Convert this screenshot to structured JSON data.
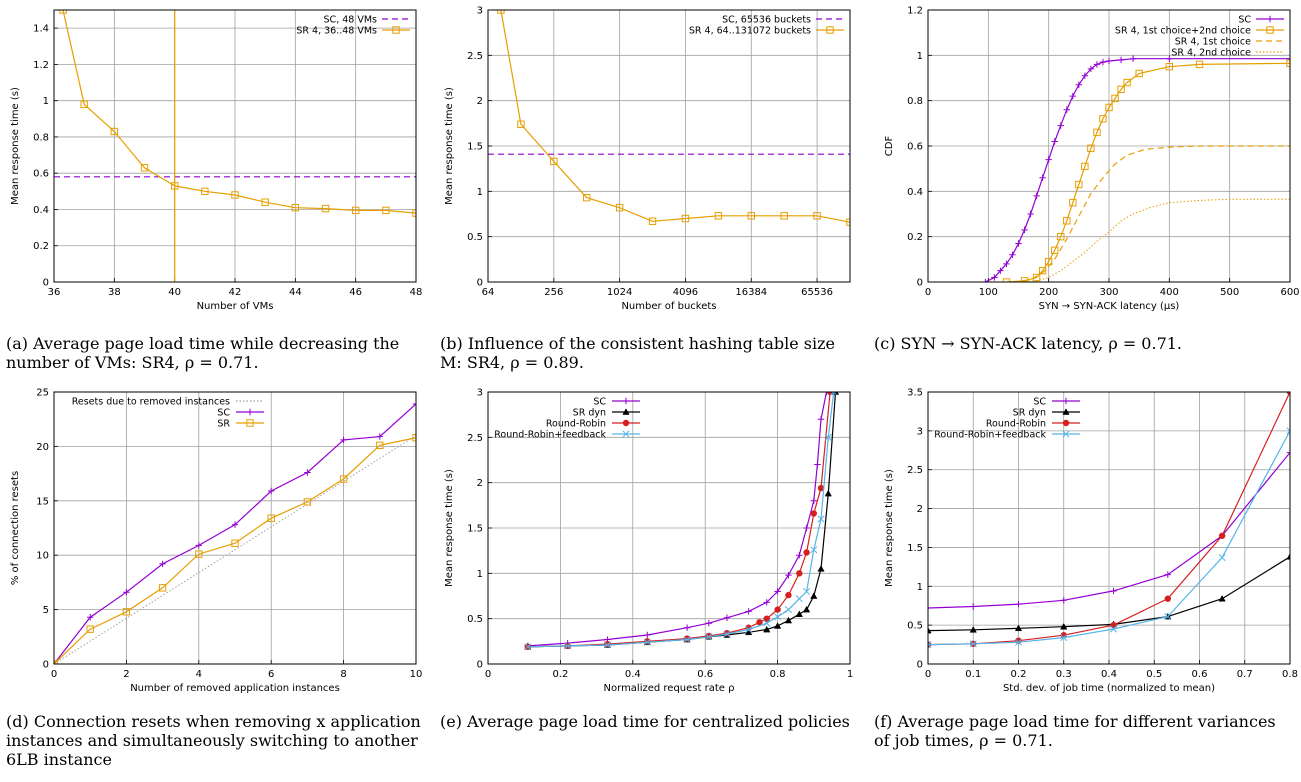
{
  "colors": {
    "sc": "#9400d3",
    "sr": "#e69f00",
    "black": "#000000",
    "red": "#d62020",
    "blue": "#56b4e9",
    "grid": "#a0a0a0"
  },
  "chart_data": [
    {
      "id": "a",
      "type": "line",
      "xlabel": "Number of VMs",
      "ylabel": "Mean response time (s)",
      "xlim": [
        36,
        48
      ],
      "ylim": [
        0,
        1.5
      ],
      "xticks": [
        36,
        38,
        40,
        42,
        44,
        46,
        48
      ],
      "yticks": [
        0,
        0.2,
        0.4,
        0.6,
        0.8,
        1,
        1.2,
        1.4
      ],
      "grid": true,
      "legend": "top-right",
      "series": [
        {
          "name": "SC, 48 VMs",
          "color": "#9400d3",
          "style": "dashed",
          "marker": "none",
          "x": [
            36,
            48
          ],
          "y": [
            0.58,
            0.58
          ]
        },
        {
          "name": "SR 4, 36..48 VMs",
          "color": "#e69f00",
          "style": "solid",
          "marker": "square",
          "x": [
            36.3,
            37,
            38,
            39,
            40,
            41,
            42,
            43,
            44,
            45,
            46,
            47,
            48
          ],
          "y": [
            1.5,
            0.98,
            0.83,
            0.63,
            0.53,
            0.5,
            0.48,
            0.44,
            0.41,
            0.405,
            0.395,
            0.395,
            0.38
          ]
        },
        {
          "name": "",
          "color": "#e69f00",
          "style": "solid",
          "marker": "none",
          "x": [
            40,
            40
          ],
          "y": [
            0,
            1.5
          ]
        }
      ]
    },
    {
      "id": "b",
      "type": "line",
      "xlabel": "Number of buckets",
      "ylabel": "Mean response time (s)",
      "xscale": "log2",
      "xlim": [
        64,
        131072
      ],
      "ylim": [
        0,
        3
      ],
      "xticks": [
        64,
        256,
        1024,
        4096,
        16384,
        65536
      ],
      "yticks": [
        0,
        0.5,
        1,
        1.5,
        2,
        2.5,
        3
      ],
      "grid": true,
      "legend": "top-right",
      "series": [
        {
          "name": "SC, 65536 buckets",
          "color": "#9400d3",
          "style": "dashed",
          "marker": "none",
          "x": [
            64,
            131072
          ],
          "y": [
            1.41,
            1.41
          ]
        },
        {
          "name": "SR 4, 64..131072 buckets",
          "color": "#e69f00",
          "style": "solid",
          "marker": "square",
          "x": [
            84,
            128,
            256,
            512,
            1024,
            2048,
            4096,
            8192,
            16384,
            32768,
            65536,
            131072
          ],
          "y": [
            3,
            1.74,
            1.33,
            0.93,
            0.82,
            0.67,
            0.7,
            0.73,
            0.73,
            0.73,
            0.73,
            0.66
          ]
        }
      ]
    },
    {
      "id": "c",
      "type": "line",
      "xlabel": "SYN → SYN-ACK latency (μs)",
      "ylabel": "CDF",
      "xlim": [
        0,
        600
      ],
      "ylim": [
        0,
        1.2
      ],
      "xticks": [
        0,
        100,
        200,
        300,
        400,
        500,
        600
      ],
      "yticks": [
        0,
        0.2,
        0.4,
        0.6,
        0.8,
        1,
        1.2
      ],
      "grid": true,
      "legend": "top-right",
      "series": [
        {
          "name": "SC",
          "color": "#9400d3",
          "style": "solid",
          "marker": "plus",
          "x": [
            95,
            110,
            120,
            130,
            140,
            150,
            160,
            170,
            180,
            190,
            200,
            210,
            220,
            230,
            240,
            250,
            260,
            270,
            280,
            290,
            300,
            320,
            340,
            400,
            600
          ],
          "y": [
            0,
            0.02,
            0.05,
            0.08,
            0.12,
            0.17,
            0.23,
            0.3,
            0.38,
            0.46,
            0.54,
            0.62,
            0.69,
            0.76,
            0.82,
            0.87,
            0.91,
            0.94,
            0.96,
            0.97,
            0.975,
            0.98,
            0.985,
            0.985,
            0.985
          ]
        },
        {
          "name": "SR 4, 1st choice+2nd choice",
          "color": "#e69f00",
          "style": "solid",
          "marker": "square",
          "x": [
            130,
            160,
            180,
            190,
            200,
            210,
            220,
            230,
            240,
            250,
            260,
            270,
            280,
            290,
            300,
            310,
            320,
            330,
            350,
            400,
            450,
            600
          ],
          "y": [
            0,
            0.005,
            0.02,
            0.05,
            0.09,
            0.14,
            0.2,
            0.27,
            0.35,
            0.43,
            0.51,
            0.59,
            0.66,
            0.72,
            0.77,
            0.81,
            0.85,
            0.88,
            0.92,
            0.95,
            0.96,
            0.965
          ]
        },
        {
          "name": "SR 4, 1st choice",
          "color": "#e69f00",
          "style": "dashed",
          "marker": "none",
          "x": [
            140,
            170,
            190,
            210,
            230,
            250,
            270,
            290,
            310,
            330,
            360,
            400,
            450,
            500,
            600
          ],
          "y": [
            0,
            0.01,
            0.04,
            0.1,
            0.19,
            0.29,
            0.39,
            0.46,
            0.52,
            0.56,
            0.585,
            0.595,
            0.6,
            0.6,
            0.6
          ]
        },
        {
          "name": "SR 4, 2nd choice",
          "color": "#e69f00",
          "style": "dotted",
          "marker": "none",
          "x": [
            150,
            180,
            200,
            220,
            240,
            260,
            280,
            300,
            320,
            340,
            370,
            400,
            450,
            500,
            600
          ],
          "y": [
            0,
            0.005,
            0.02,
            0.05,
            0.09,
            0.13,
            0.18,
            0.22,
            0.27,
            0.3,
            0.33,
            0.35,
            0.36,
            0.365,
            0.365
          ]
        }
      ]
    },
    {
      "id": "d",
      "type": "line",
      "xlabel": "Number of removed application instances",
      "ylabel": "% of connection resets",
      "xlim": [
        0,
        10
      ],
      "ylim": [
        0,
        25
      ],
      "xticks": [
        0,
        2,
        4,
        6,
        8,
        10
      ],
      "yticks": [
        0,
        5,
        10,
        15,
        20,
        25
      ],
      "grid": true,
      "legend": "top-left",
      "series": [
        {
          "name": "Resets due to removed instances",
          "color": "#a0a0a0",
          "style": "dotted",
          "marker": "none",
          "x": [
            0,
            10
          ],
          "y": [
            0,
            21
          ]
        },
        {
          "name": "SC",
          "color": "#9400d3",
          "style": "solid",
          "marker": "plus",
          "x": [
            0,
            1,
            2,
            3,
            4,
            5,
            6,
            7,
            8,
            9,
            10
          ],
          "y": [
            0,
            4.3,
            6.6,
            9.2,
            10.9,
            12.8,
            15.9,
            17.6,
            20.6,
            20.9,
            23.9
          ]
        },
        {
          "name": "SR",
          "color": "#e69f00",
          "style": "solid",
          "marker": "square",
          "x": [
            0,
            1,
            2,
            3,
            4,
            5,
            6,
            7,
            8,
            9,
            10
          ],
          "y": [
            0,
            3.2,
            4.8,
            7,
            10.1,
            11.1,
            13.4,
            14.9,
            17,
            20.1,
            20.8
          ]
        }
      ]
    },
    {
      "id": "e",
      "type": "line",
      "xlabel": "Normalized request rate ρ",
      "ylabel": "Mean response time (s)",
      "xlim": [
        0,
        1
      ],
      "ylim": [
        0,
        3
      ],
      "xticks": [
        0,
        0.2,
        0.4,
        0.6,
        0.8,
        1
      ],
      "yticks": [
        0,
        0.5,
        1,
        1.5,
        2,
        2.5,
        3
      ],
      "grid": true,
      "legend": "top-left",
      "series": [
        {
          "name": "SC",
          "color": "#9400d3",
          "style": "solid",
          "marker": "plus",
          "x": [
            0.11,
            0.22,
            0.33,
            0.44,
            0.55,
            0.61,
            0.66,
            0.72,
            0.77,
            0.8,
            0.83,
            0.86,
            0.88,
            0.9,
            0.91,
            0.92,
            0.935
          ],
          "y": [
            0.2,
            0.23,
            0.27,
            0.32,
            0.4,
            0.45,
            0.51,
            0.58,
            0.68,
            0.8,
            0.98,
            1.2,
            1.5,
            1.8,
            2.2,
            2.7,
            3
          ]
        },
        {
          "name": "SR dyn",
          "color": "#000000",
          "style": "solid",
          "marker": "triangle",
          "x": [
            0.11,
            0.22,
            0.33,
            0.44,
            0.55,
            0.61,
            0.66,
            0.72,
            0.77,
            0.8,
            0.83,
            0.86,
            0.88,
            0.9,
            0.92,
            0.94,
            0.96
          ],
          "y": [
            0.19,
            0.2,
            0.21,
            0.24,
            0.27,
            0.3,
            0.32,
            0.35,
            0.38,
            0.42,
            0.48,
            0.55,
            0.6,
            0.75,
            1.05,
            1.88,
            3
          ]
        },
        {
          "name": "Round-Robin",
          "color": "#d62020",
          "style": "solid",
          "marker": "dot",
          "x": [
            0.11,
            0.22,
            0.33,
            0.44,
            0.55,
            0.61,
            0.66,
            0.72,
            0.75,
            0.77,
            0.8,
            0.83,
            0.86,
            0.88,
            0.9,
            0.92,
            0.945
          ],
          "y": [
            0.19,
            0.2,
            0.22,
            0.25,
            0.28,
            0.31,
            0.34,
            0.4,
            0.46,
            0.5,
            0.6,
            0.76,
            1.0,
            1.23,
            1.66,
            1.94,
            3
          ]
        },
        {
          "name": "Round-Robin+feedback",
          "color": "#56b4e9",
          "style": "solid",
          "marker": "cross",
          "x": [
            0.11,
            0.22,
            0.33,
            0.44,
            0.55,
            0.61,
            0.66,
            0.72,
            0.77,
            0.8,
            0.83,
            0.86,
            0.88,
            0.9,
            0.92,
            0.94,
            0.955
          ],
          "y": [
            0.19,
            0.2,
            0.21,
            0.24,
            0.27,
            0.3,
            0.33,
            0.38,
            0.45,
            0.52,
            0.6,
            0.72,
            0.8,
            1.26,
            1.6,
            2.5,
            3
          ]
        }
      ]
    },
    {
      "id": "f",
      "type": "line",
      "xlabel": "Std. dev. of job time (normalized to mean)",
      "ylabel": "Mean response time (s)",
      "xlim": [
        0,
        0.8
      ],
      "ylim": [
        0,
        3.5
      ],
      "xticks": [
        0,
        0.1,
        0.2,
        0.3,
        0.4,
        0.5,
        0.6,
        0.7,
        0.8
      ],
      "yticks": [
        0,
        0.5,
        1,
        1.5,
        2,
        2.5,
        3,
        3.5
      ],
      "grid": true,
      "legend": "top-left",
      "series": [
        {
          "name": "SC",
          "color": "#9400d3",
          "style": "solid",
          "marker": "plus",
          "x": [
            0,
            0.1,
            0.2,
            0.3,
            0.41,
            0.53,
            0.65,
            0.8
          ],
          "y": [
            0.72,
            0.74,
            0.77,
            0.82,
            0.94,
            1.15,
            1.65,
            2.72
          ]
        },
        {
          "name": "SR dyn",
          "color": "#000000",
          "style": "solid",
          "marker": "triangle",
          "x": [
            0,
            0.1,
            0.2,
            0.3,
            0.41,
            0.53,
            0.65,
            0.8
          ],
          "y": [
            0.43,
            0.44,
            0.46,
            0.48,
            0.51,
            0.61,
            0.84,
            1.38
          ]
        },
        {
          "name": "Round-Robin",
          "color": "#d62020",
          "style": "solid",
          "marker": "dot",
          "x": [
            0,
            0.1,
            0.2,
            0.3,
            0.41,
            0.53,
            0.65,
            0.8
          ],
          "y": [
            0.25,
            0.26,
            0.3,
            0.37,
            0.5,
            0.84,
            1.65,
            3.5
          ]
        },
        {
          "name": "Round-Robin+feedback",
          "color": "#56b4e9",
          "style": "solid",
          "marker": "cross",
          "x": [
            0,
            0.1,
            0.2,
            0.3,
            0.41,
            0.53,
            0.65,
            0.8
          ],
          "y": [
            0.25,
            0.26,
            0.28,
            0.34,
            0.45,
            0.61,
            1.37,
            3
          ]
        }
      ]
    }
  ],
  "captions": [
    {
      "label": "(a)",
      "text": "Average page load time while decreasing the number of VMs: SR4, ρ = 0.71."
    },
    {
      "label": "(b)",
      "text": "Influence of the consistent hashing table size M: SR4, ρ = 0.89."
    },
    {
      "label": "(c)",
      "text": "SYN → SYN-ACK latency, ρ = 0.71."
    },
    {
      "label": "(d)",
      "text": "Connection resets when removing x application instances and simultaneously switching to another 6LB instance"
    },
    {
      "label": "(e)",
      "text": "Average page load time for centralized policies"
    },
    {
      "label": "(f)",
      "text": "Average page load time for different variances of job times, ρ = 0.71."
    }
  ]
}
